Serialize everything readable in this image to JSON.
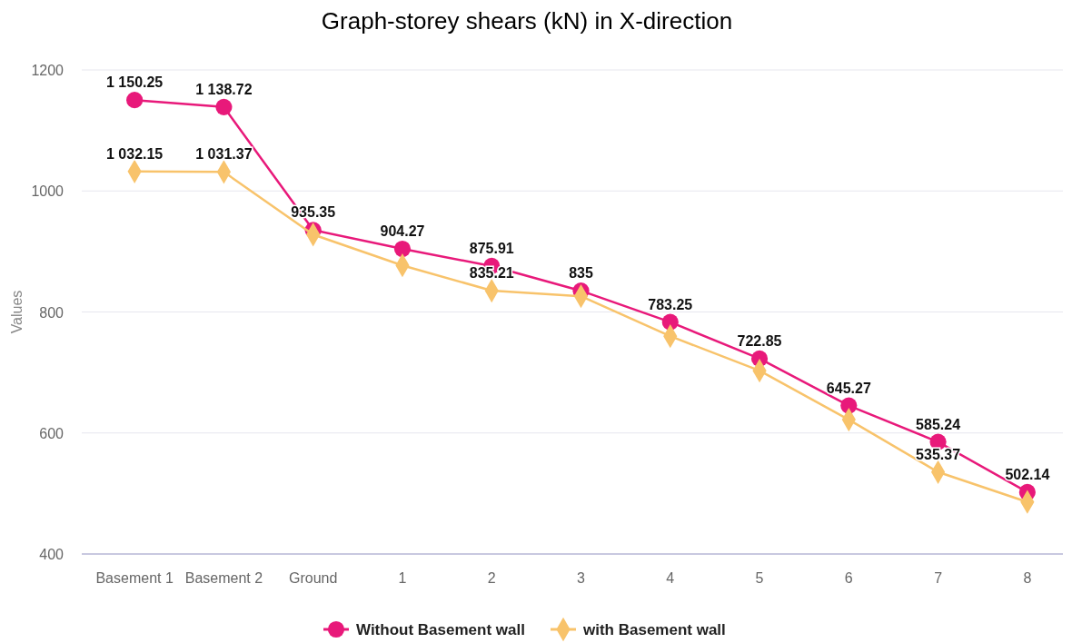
{
  "chart_data": {
    "type": "line",
    "title": "Graph-storey shears (kN) in X-direction",
    "ylabel": "Values",
    "categories": [
      "Basement 1",
      "Basement 2",
      "Ground",
      "1",
      "2",
      "3",
      "4",
      "5",
      "6",
      "7",
      "8"
    ],
    "ylim": [
      400,
      1200
    ],
    "yticks": [
      400,
      600,
      800,
      1000,
      1200
    ],
    "grid": "y",
    "legend": "bottom",
    "series": [
      {
        "name": "Without Basement wall",
        "color": "#e8197a",
        "marker": "circle",
        "values": [
          1150.25,
          1138.72,
          935.35,
          904.27,
          875.91,
          835,
          783.25,
          722.85,
          645.27,
          585.24,
          502.14
        ],
        "value_labels": [
          "1 150.25",
          "1 138.72",
          "935.35",
          "904.27",
          "875.91",
          "835",
          "783.25",
          "722.85",
          "645.27",
          "585.24",
          "502.14"
        ]
      },
      {
        "name": "with Basement wall",
        "color": "#f8c36b",
        "marker": "diamond",
        "values": [
          1032.15,
          1031.37,
          928,
          877,
          835.21,
          826,
          760,
          703,
          622,
          535.37,
          486
        ],
        "value_labels": [
          "1 032.15",
          "1 031.37",
          null,
          null,
          "835.21",
          null,
          null,
          null,
          null,
          "535.37",
          null
        ]
      }
    ]
  }
}
